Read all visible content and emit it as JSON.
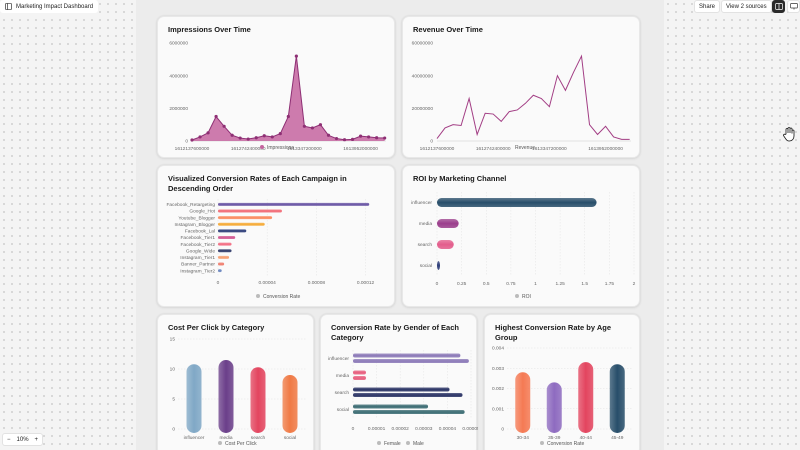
{
  "app": {
    "title": "Marketing Impact Dashboard",
    "share_label": "Share",
    "sources_label": "View 2 sources",
    "zoom": "10%",
    "zoom_out": "−",
    "zoom_in": "+"
  },
  "colors": {
    "accent_purple": "#a23d84",
    "bg": "#ececec"
  },
  "chart_data": [
    {
      "id": "impressions",
      "type": "area",
      "title": "Impressions Over Time",
      "x_ticks": [
        "1612137600000",
        "1612742400000",
        "1613347200000",
        "1613952000000"
      ],
      "y_ticks": [
        "6000000",
        "4000000",
        "2000000",
        "0"
      ],
      "ylim": [
        0,
        6000000
      ],
      "xlim": [
        1612137600000,
        1614225600000
      ],
      "x": [
        1612137600000,
        1612224000000,
        1612310400000,
        1612396800000,
        1612483200000,
        1612569600000,
        1612656000000,
        1612742400000,
        1612828800000,
        1612915200000,
        1613001600000,
        1613088000000,
        1613174400000,
        1613260800000,
        1613347200000,
        1613433600000,
        1613520000000,
        1613606400000,
        1613692800000,
        1613779200000,
        1613865600000,
        1613952000000,
        1614038400000,
        1614124800000,
        1614211200000
      ],
      "y": [
        60000,
        250000,
        500000,
        1500000,
        900000,
        350000,
        180000,
        120000,
        200000,
        320000,
        250000,
        450000,
        1500000,
        5200000,
        900000,
        800000,
        1000000,
        350000,
        150000,
        80000,
        100000,
        300000,
        250000,
        200000,
        180000
      ],
      "legend": "Impressions"
    },
    {
      "id": "revenue",
      "type": "line",
      "title": "Revenue Over Time",
      "x_ticks": [
        "1612137600000",
        "1612742400000",
        "1613347200000",
        "1613952000000"
      ],
      "y_ticks": [
        "60000000",
        "40000000",
        "20000000",
        "0"
      ],
      "ylim": [
        0,
        60000000
      ],
      "xlim": [
        1612137600000,
        1614225600000
      ],
      "x": [
        1612137600000,
        1612224000000,
        1612310400000,
        1612396800000,
        1612483200000,
        1612569600000,
        1612656000000,
        1612742400000,
        1612828800000,
        1612915200000,
        1613001600000,
        1613088000000,
        1613174400000,
        1613260800000,
        1613347200000,
        1613433600000,
        1613520000000,
        1613606400000,
        1613692800000,
        1613779200000,
        1613865600000,
        1613952000000,
        1614038400000,
        1614124800000,
        1614211200000
      ],
      "y": [
        1500000,
        8000000,
        10000000,
        9500000,
        26000000,
        4000000,
        17000000,
        16500000,
        12000000,
        18000000,
        19000000,
        23000000,
        28000000,
        26000000,
        21000000,
        40000000,
        31000000,
        42000000,
        52000000,
        10000000,
        4000000,
        9000000,
        2500000,
        1000000,
        1000000
      ],
      "legend": "Revenue"
    },
    {
      "id": "conversion-campaign",
      "type": "bar",
      "orientation": "horizontal",
      "title": "Visualized Conversion Rates of Each Campaign in Descending Order",
      "categories": [
        "Facebook_Retargeting",
        "Google_Hot",
        "Youtube_Blogger",
        "Instagram_Blogger",
        "Facebook_Lal",
        "Facebook_Tier1",
        "Facebook_Tier2",
        "Google_Wide",
        "Instagram_Tier1",
        "Banner_Partner",
        "Instagram_Tier2"
      ],
      "values": [
        0.000123,
        5.2e-05,
        4.4e-05,
        3.8e-05,
        2.3e-05,
        1.4e-05,
        1.1e-05,
        1.1e-05,
        9e-06,
        5e-06,
        3e-06
      ],
      "bar_colors": [
        "#6b57a5",
        "#f26b76",
        "#fb8b60",
        "#f6ab38",
        "#2f3f7a",
        "#d25a93",
        "#f36d83",
        "#333d6c",
        "#f7a072",
        "#f07d6d",
        "#6b86bf"
      ],
      "x_ticks": [
        "0",
        "0.00004",
        "0.00008",
        "0.00012"
      ],
      "xlim": [
        0,
        0.000135
      ],
      "legend": "Conversion Rate"
    },
    {
      "id": "roi-channel",
      "type": "bar",
      "orientation": "horizontal",
      "title": "ROI by Marketing Channel",
      "categories": [
        "influencer",
        "media",
        "search",
        "social"
      ],
      "values": [
        1.62,
        0.22,
        0.17,
        0.03
      ],
      "bar_colors": [
        "#284e6a",
        "#9b3e8c",
        "#e35d8c",
        "#2f3f7a"
      ],
      "x_ticks": [
        "0",
        "0.25",
        "0.5",
        "0.75",
        "1",
        "1.25",
        "1.5",
        "1.75",
        "2"
      ],
      "xlim": [
        0,
        2
      ],
      "legend": "ROI"
    },
    {
      "id": "cpc-category",
      "type": "bar",
      "title": "Cost Per Click by Category",
      "categories": [
        "influencer",
        "media",
        "search",
        "social"
      ],
      "values": [
        10.8,
        11.5,
        10.3,
        9.0
      ],
      "bar_colors": [
        "#80a8c6",
        "#6b3f8a",
        "#e3455f",
        "#f07a45"
      ],
      "y_ticks": [
        "15",
        "10",
        "5",
        "0"
      ],
      "ylim": [
        0,
        15
      ],
      "legend": "Cost Per Click"
    },
    {
      "id": "conversion-gender",
      "type": "bar",
      "orientation": "horizontal",
      "title": "Conversion Rate by Gender of Each Category",
      "categories": [
        "influencer",
        "media",
        "search",
        "social"
      ],
      "series": [
        {
          "name": "Female",
          "values": [
            4.55e-05,
            5.5e-06,
            4.09e-05,
            3.18e-05
          ],
          "colors": [
            "#8c7ab8",
            "#e85f7f",
            "#2c3566",
            "#3d6d74"
          ]
        },
        {
          "name": "Male",
          "values": [
            4.91e-05,
            5.5e-06,
            4.64e-05,
            4.73e-05
          ],
          "colors": [
            "#8c7ab8",
            "#e85f7f",
            "#2c3566",
            "#3d6d74"
          ]
        }
      ],
      "x_ticks": [
        "0",
        "0.00001",
        "0.00002",
        "0.00003",
        "0.00004",
        "0.00005"
      ],
      "xlim": [
        0,
        5e-05
      ],
      "legend_female": "Female",
      "legend_male": "Male"
    },
    {
      "id": "conversion-age",
      "type": "bar",
      "title": "Highest Conversion Rate by Age Group",
      "categories": [
        "30-34",
        "35-39",
        "40-44",
        "45-49"
      ],
      "values": [
        0.0028,
        0.0023,
        0.0033,
        0.0032
      ],
      "bar_colors": [
        "#f57a54",
        "#8e6bc0",
        "#e3455f",
        "#284e6a"
      ],
      "y_ticks": [
        "0.004",
        "0.003",
        "0.002",
        "0.001",
        "0"
      ],
      "ylim": [
        0,
        0.004
      ],
      "legend": "Conversion Rate"
    }
  ]
}
